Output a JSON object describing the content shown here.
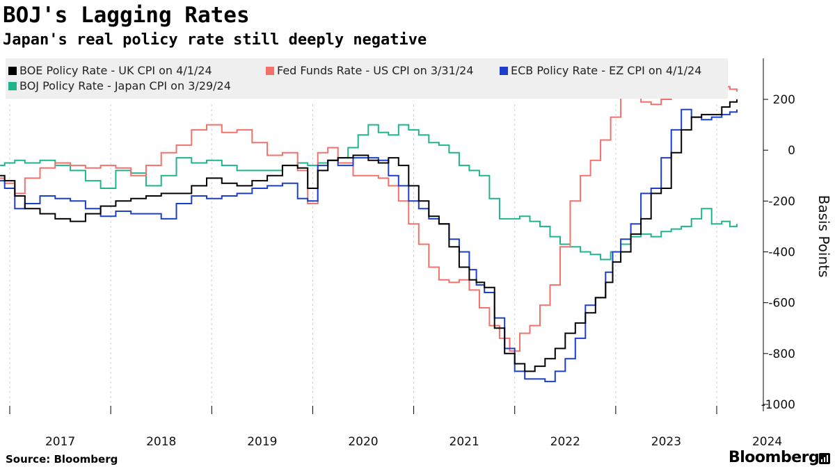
{
  "header": {
    "title": "BOJ's Lagging Rates",
    "subtitle": "Japan's real policy rate still deeply negative"
  },
  "footer": {
    "source": "Source: Bloomberg",
    "brand": "Bloomberg"
  },
  "chart_data": {
    "type": "line",
    "title": "BOJ's Lagging Rates",
    "subtitle": "Japan's real policy rate still deeply negative",
    "ylabel": "Basis Points",
    "xlabel": "",
    "ylim": [
      -1000,
      350
    ],
    "yticks": [
      200,
      0,
      -200,
      -400,
      -600,
      -800,
      -1000
    ],
    "ytick_labels": [
      "200",
      "0",
      "-200",
      "-400",
      "-600",
      "-800",
      "-1000"
    ],
    "xlim": [
      2016.9,
      2024.4
    ],
    "xticks": [
      2017,
      2018,
      2019,
      2020,
      2021,
      2022,
      2023,
      2024
    ],
    "xtick_labels": [
      "2017",
      "2018",
      "2019",
      "2020",
      "2021",
      "2022",
      "2023",
      "2024"
    ],
    "grid": "vertical dashed at year boundaries",
    "legend_position": "top",
    "series": [
      {
        "name": "BOE Policy Rate - UK CPI on 4/1/24",
        "color": "#000000",
        "points": [
          [
            2016.9,
            -100
          ],
          [
            2016.95,
            -120
          ],
          [
            2017.05,
            -180
          ],
          [
            2017.15,
            -230
          ],
          [
            2017.3,
            -250
          ],
          [
            2017.45,
            -270
          ],
          [
            2017.6,
            -280
          ],
          [
            2017.75,
            -250
          ],
          [
            2017.9,
            -220
          ],
          [
            2018.05,
            -200
          ],
          [
            2018.2,
            -190
          ],
          [
            2018.35,
            -180
          ],
          [
            2018.5,
            -170
          ],
          [
            2018.65,
            -170
          ],
          [
            2018.8,
            -140
          ],
          [
            2018.95,
            -110
          ],
          [
            2019.1,
            -130
          ],
          [
            2019.25,
            -140
          ],
          [
            2019.4,
            -120
          ],
          [
            2019.55,
            -100
          ],
          [
            2019.7,
            -60
          ],
          [
            2019.85,
            -70
          ],
          [
            2019.95,
            -150
          ],
          [
            2020.05,
            -80
          ],
          [
            2020.15,
            -40
          ],
          [
            2020.25,
            -30
          ],
          [
            2020.4,
            -20
          ],
          [
            2020.55,
            -40
          ],
          [
            2020.65,
            -50
          ],
          [
            2020.75,
            -30
          ],
          [
            2020.85,
            -60
          ],
          [
            2020.95,
            -140
          ],
          [
            2021.05,
            -200
          ],
          [
            2021.15,
            -260
          ],
          [
            2021.25,
            -290
          ],
          [
            2021.35,
            -380
          ],
          [
            2021.45,
            -460
          ],
          [
            2021.55,
            -510
          ],
          [
            2021.62,
            -520
          ],
          [
            2021.7,
            -540
          ],
          [
            2021.8,
            -700
          ],
          [
            2021.9,
            -800
          ],
          [
            2022.0,
            -840
          ],
          [
            2022.1,
            -870
          ],
          [
            2022.2,
            -850
          ],
          [
            2022.3,
            -820
          ],
          [
            2022.4,
            -780
          ],
          [
            2022.5,
            -720
          ],
          [
            2022.6,
            -680
          ],
          [
            2022.7,
            -640
          ],
          [
            2022.8,
            -580
          ],
          [
            2022.9,
            -520
          ],
          [
            2022.97,
            -440
          ],
          [
            2023.05,
            -400
          ],
          [
            2023.15,
            -330
          ],
          [
            2023.25,
            -270
          ],
          [
            2023.35,
            -170
          ],
          [
            2023.45,
            -150
          ],
          [
            2023.55,
            -10
          ],
          [
            2023.65,
            80
          ],
          [
            2023.75,
            130
          ],
          [
            2023.85,
            140
          ],
          [
            2023.95,
            140
          ],
          [
            2024.05,
            170
          ],
          [
            2024.13,
            190
          ],
          [
            2024.2,
            200
          ]
        ]
      },
      {
        "name": "Fed Funds Rate - US CPI on 3/31/24",
        "color": "#f2716b",
        "points": [
          [
            2016.9,
            -110
          ],
          [
            2016.95,
            -130
          ],
          [
            2017.05,
            -170
          ],
          [
            2017.15,
            -110
          ],
          [
            2017.3,
            -70
          ],
          [
            2017.45,
            -50
          ],
          [
            2017.6,
            -60
          ],
          [
            2017.75,
            -70
          ],
          [
            2017.9,
            -60
          ],
          [
            2018.05,
            -70
          ],
          [
            2018.2,
            -100
          ],
          [
            2018.35,
            -60
          ],
          [
            2018.5,
            -10
          ],
          [
            2018.65,
            20
          ],
          [
            2018.8,
            80
          ],
          [
            2018.95,
            100
          ],
          [
            2019.1,
            70
          ],
          [
            2019.25,
            80
          ],
          [
            2019.4,
            30
          ],
          [
            2019.55,
            -20
          ],
          [
            2019.7,
            -10
          ],
          [
            2019.85,
            -80
          ],
          [
            2019.95,
            -210
          ],
          [
            2020.05,
            -10
          ],
          [
            2020.15,
            10
          ],
          [
            2020.25,
            -50
          ],
          [
            2020.4,
            -100
          ],
          [
            2020.55,
            -100
          ],
          [
            2020.65,
            -110
          ],
          [
            2020.75,
            -140
          ],
          [
            2020.85,
            -200
          ],
          [
            2020.95,
            -290
          ],
          [
            2021.05,
            -370
          ],
          [
            2021.15,
            -460
          ],
          [
            2021.25,
            -510
          ],
          [
            2021.35,
            -520
          ],
          [
            2021.45,
            -510
          ],
          [
            2021.55,
            -550
          ],
          [
            2021.65,
            -620
          ],
          [
            2021.75,
            -690
          ],
          [
            2021.85,
            -740
          ],
          [
            2021.95,
            -790
          ],
          [
            2022.05,
            -720
          ],
          [
            2022.15,
            -690
          ],
          [
            2022.25,
            -610
          ],
          [
            2022.35,
            -530
          ],
          [
            2022.45,
            -380
          ],
          [
            2022.55,
            -200
          ],
          [
            2022.65,
            -100
          ],
          [
            2022.75,
            -40
          ],
          [
            2022.85,
            40
          ],
          [
            2022.95,
            130
          ],
          [
            2023.05,
            230
          ],
          [
            2023.15,
            260
          ],
          [
            2023.25,
            190
          ],
          [
            2023.35,
            180
          ],
          [
            2023.45,
            200
          ],
          [
            2023.55,
            220
          ],
          [
            2023.65,
            220
          ],
          [
            2023.75,
            240
          ],
          [
            2023.85,
            240
          ],
          [
            2023.95,
            230
          ],
          [
            2024.05,
            250
          ],
          [
            2024.13,
            240
          ],
          [
            2024.2,
            230
          ]
        ]
      },
      {
        "name": "ECB Policy Rate - EZ  CPI on 4/1/24",
        "color": "#1a3fcc",
        "points": [
          [
            2016.9,
            -120
          ],
          [
            2016.95,
            -150
          ],
          [
            2017.05,
            -230
          ],
          [
            2017.15,
            -210
          ],
          [
            2017.3,
            -180
          ],
          [
            2017.45,
            -190
          ],
          [
            2017.6,
            -200
          ],
          [
            2017.75,
            -230
          ],
          [
            2017.9,
            -260
          ],
          [
            2018.05,
            -240
          ],
          [
            2018.2,
            -250
          ],
          [
            2018.35,
            -250
          ],
          [
            2018.5,
            -270
          ],
          [
            2018.65,
            -210
          ],
          [
            2018.8,
            -180
          ],
          [
            2018.95,
            -190
          ],
          [
            2019.1,
            -180
          ],
          [
            2019.25,
            -170
          ],
          [
            2019.4,
            -150
          ],
          [
            2019.55,
            -140
          ],
          [
            2019.7,
            -130
          ],
          [
            2019.85,
            -190
          ],
          [
            2019.95,
            -200
          ],
          [
            2020.05,
            -60
          ],
          [
            2020.15,
            -40
          ],
          [
            2020.25,
            -60
          ],
          [
            2020.4,
            -30
          ],
          [
            2020.55,
            -30
          ],
          [
            2020.65,
            -40
          ],
          [
            2020.75,
            -100
          ],
          [
            2020.85,
            -140
          ],
          [
            2020.95,
            -200
          ],
          [
            2021.05,
            -230
          ],
          [
            2021.15,
            -270
          ],
          [
            2021.25,
            -290
          ],
          [
            2021.35,
            -350
          ],
          [
            2021.45,
            -400
          ],
          [
            2021.55,
            -470
          ],
          [
            2021.62,
            -530
          ],
          [
            2021.7,
            -560
          ],
          [
            2021.8,
            -660
          ],
          [
            2021.9,
            -780
          ],
          [
            2022.0,
            -870
          ],
          [
            2022.1,
            -900
          ],
          [
            2022.2,
            -900
          ],
          [
            2022.3,
            -910
          ],
          [
            2022.4,
            -870
          ],
          [
            2022.5,
            -820
          ],
          [
            2022.6,
            -740
          ],
          [
            2022.7,
            -610
          ],
          [
            2022.8,
            -580
          ],
          [
            2022.9,
            -480
          ],
          [
            2022.97,
            -400
          ],
          [
            2023.05,
            -350
          ],
          [
            2023.15,
            -290
          ],
          [
            2023.25,
            -170
          ],
          [
            2023.35,
            -150
          ],
          [
            2023.45,
            -30
          ],
          [
            2023.55,
            80
          ],
          [
            2023.65,
            160
          ],
          [
            2023.75,
            130
          ],
          [
            2023.85,
            120
          ],
          [
            2023.95,
            130
          ],
          [
            2024.05,
            140
          ],
          [
            2024.13,
            150
          ],
          [
            2024.2,
            160
          ]
        ]
      },
      {
        "name": "BOJ Policy Rate - Japan CPI on 3/29/24",
        "color": "#1fb58c",
        "points": [
          [
            2016.9,
            -60
          ],
          [
            2016.95,
            -50
          ],
          [
            2017.05,
            -40
          ],
          [
            2017.15,
            -50
          ],
          [
            2017.3,
            -40
          ],
          [
            2017.45,
            -60
          ],
          [
            2017.6,
            -80
          ],
          [
            2017.75,
            -120
          ],
          [
            2017.9,
            -150
          ],
          [
            2018.05,
            -80
          ],
          [
            2018.2,
            -90
          ],
          [
            2018.35,
            -140
          ],
          [
            2018.5,
            -100
          ],
          [
            2018.65,
            -30
          ],
          [
            2018.8,
            -50
          ],
          [
            2018.95,
            -40
          ],
          [
            2019.1,
            -60
          ],
          [
            2019.25,
            -80
          ],
          [
            2019.4,
            -80
          ],
          [
            2019.55,
            -80
          ],
          [
            2019.7,
            -60
          ],
          [
            2019.85,
            -50
          ],
          [
            2019.95,
            -60
          ],
          [
            2020.05,
            -50
          ],
          [
            2020.15,
            -40
          ],
          [
            2020.25,
            -30
          ],
          [
            2020.35,
            10
          ],
          [
            2020.45,
            60
          ],
          [
            2020.55,
            100
          ],
          [
            2020.65,
            70
          ],
          [
            2020.75,
            60
          ],
          [
            2020.85,
            100
          ],
          [
            2020.95,
            80
          ],
          [
            2021.05,
            60
          ],
          [
            2021.15,
            30
          ],
          [
            2021.25,
            20
          ],
          [
            2021.35,
            -10
          ],
          [
            2021.45,
            -60
          ],
          [
            2021.55,
            -80
          ],
          [
            2021.65,
            -100
          ],
          [
            2021.75,
            -190
          ],
          [
            2021.85,
            -270
          ],
          [
            2021.95,
            -270
          ],
          [
            2022.05,
            -260
          ],
          [
            2022.15,
            -280
          ],
          [
            2022.25,
            -300
          ],
          [
            2022.35,
            -340
          ],
          [
            2022.45,
            -370
          ],
          [
            2022.55,
            -380
          ],
          [
            2022.65,
            -400
          ],
          [
            2022.75,
            -410
          ],
          [
            2022.85,
            -430
          ],
          [
            2022.95,
            -400
          ],
          [
            2023.05,
            -370
          ],
          [
            2023.15,
            -340
          ],
          [
            2023.25,
            -330
          ],
          [
            2023.35,
            -340
          ],
          [
            2023.45,
            -320
          ],
          [
            2023.55,
            -310
          ],
          [
            2023.65,
            -300
          ],
          [
            2023.75,
            -270
          ],
          [
            2023.85,
            -230
          ],
          [
            2023.95,
            -290
          ],
          [
            2024.05,
            -280
          ],
          [
            2024.13,
            -300
          ],
          [
            2024.2,
            -290
          ]
        ]
      }
    ]
  }
}
